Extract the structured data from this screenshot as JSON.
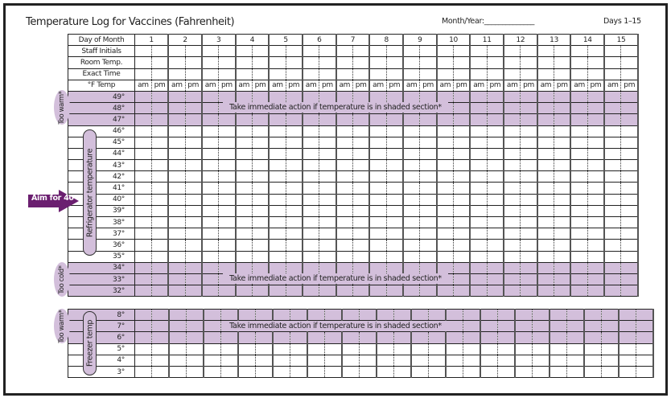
{
  "title": "Temperature Log for Vaccines (Fahrenheit)",
  "month_year_label": "Month/Year:______________",
  "days_label": "Days 1–15",
  "header_rows": [
    "Day of Month",
    "Staff Initials",
    "Room Temp.",
    "Exact Time"
  ],
  "temp_header": "°F Temp",
  "am": "am",
  "pm": "pm",
  "days": [
    "1",
    "2",
    "3",
    "4",
    "5",
    "6",
    "7",
    "8",
    "9",
    "10",
    "11",
    "12",
    "13",
    "14",
    "15"
  ],
  "fridge": {
    "too_warm_label": "Too warm*",
    "too_warm_temps": [
      "49°",
      "48°",
      "47°"
    ],
    "ok_label": "Refrigerator temperature",
    "ok_temps": [
      "46°",
      "45°",
      "44°",
      "43°",
      "42°",
      "41°",
      "40°",
      "39°",
      "38°",
      "37°",
      "36°",
      "35°"
    ],
    "too_cold_label": "Too cold*",
    "too_cold_temps": [
      "34°",
      "33°",
      "32°"
    ]
  },
  "freezer": {
    "too_warm_label": "Too warm*",
    "label": "Freezer temp",
    "too_warm_temps": [
      "8°",
      "7°",
      "6°"
    ],
    "ok_temps": [
      "5°",
      "4°",
      "3°"
    ]
  },
  "warning": "Take immediate action if temperature is in shaded section*",
  "aim_label": "Aim for 40",
  "colors": {
    "shade": "#d3bfdb",
    "arrow": "#6b1f70"
  }
}
